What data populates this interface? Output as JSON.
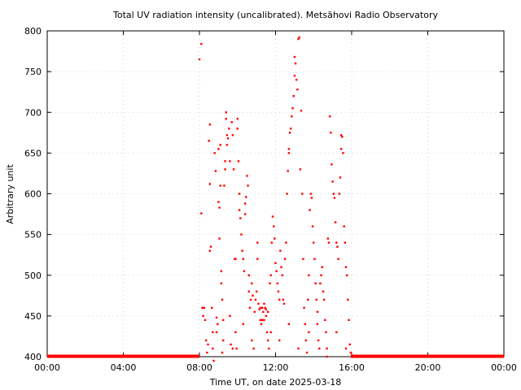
{
  "chart_data": {
    "type": "scatter",
    "title": "Total UV radiation intensity (uncalibrated). Metsähovi Radio Observatory",
    "xlabel": "Time UT, on date 2025-03-18",
    "ylabel": "Arbitrary unit",
    "xlim": [
      0,
      24
    ],
    "ylim": [
      400,
      800
    ],
    "x_ticks": [
      0,
      4,
      8,
      12,
      16,
      20,
      24
    ],
    "x_tick_labels": [
      "00:00",
      "04:00",
      "08:00",
      "12:00",
      "16:00",
      "20:00",
      "00:00"
    ],
    "y_ticks": [
      400,
      450,
      500,
      550,
      600,
      650,
      700,
      750,
      800
    ],
    "y_tick_labels": [
      "400",
      "450",
      "500",
      "550",
      "600",
      "650",
      "700",
      "750",
      "800"
    ],
    "grid": true,
    "color": "#ff0000",
    "baseline": {
      "value": 400,
      "x_ranges": [
        [
          0,
          8.0
        ],
        [
          15.95,
          24
        ]
      ]
    },
    "series": [
      {
        "points": [
          [
            8.0,
            765
          ],
          [
            8.1,
            784
          ],
          [
            8.1,
            576
          ],
          [
            8.15,
            460
          ],
          [
            8.25,
            460
          ],
          [
            8.3,
            445
          ],
          [
            8.35,
            420
          ],
          [
            8.4,
            405
          ],
          [
            8.45,
            415
          ],
          [
            8.5,
            665
          ],
          [
            8.55,
            685
          ],
          [
            8.55,
            612
          ],
          [
            8.55,
            530
          ],
          [
            8.6,
            535
          ],
          [
            8.65,
            460
          ],
          [
            8.7,
            410
          ],
          [
            8.75,
            395
          ],
          [
            8.8,
            650
          ],
          [
            8.85,
            628
          ],
          [
            8.9,
            448
          ],
          [
            8.9,
            430
          ],
          [
            8.95,
            440
          ],
          [
            9.0,
            655
          ],
          [
            9.0,
            590
          ],
          [
            9.05,
            583
          ],
          [
            9.05,
            545
          ],
          [
            9.1,
            610
          ],
          [
            9.1,
            660
          ],
          [
            9.15,
            505
          ],
          [
            9.15,
            490
          ],
          [
            9.2,
            470
          ],
          [
            9.2,
            405
          ],
          [
            9.25,
            445
          ],
          [
            9.3,
            610
          ],
          [
            9.35,
            640
          ],
          [
            9.35,
            630
          ],
          [
            9.4,
            700
          ],
          [
            9.4,
            692
          ],
          [
            9.45,
            672
          ],
          [
            9.45,
            660
          ],
          [
            9.5,
            668
          ],
          [
            9.55,
            680
          ],
          [
            9.6,
            640
          ],
          [
            9.6,
            450
          ],
          [
            9.65,
            415
          ],
          [
            9.7,
            688
          ],
          [
            9.75,
            672
          ],
          [
            9.8,
            630
          ],
          [
            9.85,
            520
          ],
          [
            9.9,
            520
          ],
          [
            9.9,
            430
          ],
          [
            9.95,
            410
          ],
          [
            10.0,
            692
          ],
          [
            10.0,
            680
          ],
          [
            10.05,
            640
          ],
          [
            10.1,
            600
          ],
          [
            10.1,
            580
          ],
          [
            10.15,
            570
          ],
          [
            10.2,
            550
          ],
          [
            10.25,
            530
          ],
          [
            10.3,
            520
          ],
          [
            10.35,
            505
          ],
          [
            10.4,
            588
          ],
          [
            10.4,
            575
          ],
          [
            10.45,
            596
          ],
          [
            10.5,
            622
          ],
          [
            10.55,
            610
          ],
          [
            10.6,
            500
          ],
          [
            10.6,
            480
          ],
          [
            10.65,
            460
          ],
          [
            10.7,
            470
          ],
          [
            10.75,
            490
          ],
          [
            10.8,
            475
          ],
          [
            10.85,
            410
          ],
          [
            10.9,
            455
          ],
          [
            10.95,
            470
          ],
          [
            11.0,
            480
          ],
          [
            11.05,
            540
          ],
          [
            11.05,
            520
          ],
          [
            11.1,
            465
          ],
          [
            11.15,
            458
          ],
          [
            11.2,
            445
          ],
          [
            11.25,
            440
          ],
          [
            11.3,
            460
          ],
          [
            11.35,
            455
          ],
          [
            11.4,
            445
          ],
          [
            11.45,
            460
          ],
          [
            11.5,
            450
          ],
          [
            11.55,
            430
          ],
          [
            11.6,
            420
          ],
          [
            11.65,
            410
          ],
          [
            11.7,
            490
          ],
          [
            11.75,
            500
          ],
          [
            11.8,
            540
          ],
          [
            11.85,
            572
          ],
          [
            11.9,
            560
          ],
          [
            11.95,
            545
          ],
          [
            12.0,
            515
          ],
          [
            12.05,
            505
          ],
          [
            12.1,
            490
          ],
          [
            12.15,
            480
          ],
          [
            12.2,
            470
          ],
          [
            12.25,
            530
          ],
          [
            12.3,
            510
          ],
          [
            12.35,
            500
          ],
          [
            12.4,
            470
          ],
          [
            12.45,
            465
          ],
          [
            12.5,
            520
          ],
          [
            12.55,
            540
          ],
          [
            12.6,
            600
          ],
          [
            12.65,
            628
          ],
          [
            12.7,
            655
          ],
          [
            12.7,
            650
          ],
          [
            12.75,
            675
          ],
          [
            12.8,
            680
          ],
          [
            12.85,
            695
          ],
          [
            12.9,
            705
          ],
          [
            12.95,
            720
          ],
          [
            13.0,
            745
          ],
          [
            13.0,
            768
          ],
          [
            13.05,
            760
          ],
          [
            13.1,
            740
          ],
          [
            13.15,
            728
          ],
          [
            13.2,
            790
          ],
          [
            13.25,
            792
          ],
          [
            13.3,
            630
          ],
          [
            13.35,
            702
          ],
          [
            13.4,
            600
          ],
          [
            13.45,
            520
          ],
          [
            13.5,
            460
          ],
          [
            13.55,
            440
          ],
          [
            13.6,
            420
          ],
          [
            13.65,
            405
          ],
          [
            13.7,
            470
          ],
          [
            13.75,
            500
          ],
          [
            13.8,
            580
          ],
          [
            13.85,
            600
          ],
          [
            13.9,
            595
          ],
          [
            13.95,
            560
          ],
          [
            14.0,
            540
          ],
          [
            14.05,
            520
          ],
          [
            14.1,
            490
          ],
          [
            14.15,
            470
          ],
          [
            14.2,
            440
          ],
          [
            14.25,
            420
          ],
          [
            14.3,
            410
          ],
          [
            14.35,
            490
          ],
          [
            14.4,
            500
          ],
          [
            14.45,
            510
          ],
          [
            14.5,
            480
          ],
          [
            14.55,
            470
          ],
          [
            14.6,
            445
          ],
          [
            14.65,
            430
          ],
          [
            14.7,
            410
          ],
          [
            14.75,
            545
          ],
          [
            14.8,
            540
          ],
          [
            14.85,
            695
          ],
          [
            14.9,
            675
          ],
          [
            14.95,
            636
          ],
          [
            15.0,
            615
          ],
          [
            15.05,
            600
          ],
          [
            15.1,
            595
          ],
          [
            15.15,
            565
          ],
          [
            15.2,
            540
          ],
          [
            15.25,
            535
          ],
          [
            15.3,
            520
          ],
          [
            15.35,
            600
          ],
          [
            15.4,
            620
          ],
          [
            15.45,
            655
          ],
          [
            15.45,
            672
          ],
          [
            15.5,
            670
          ],
          [
            15.55,
            650
          ],
          [
            15.6,
            560
          ],
          [
            15.65,
            540
          ],
          [
            15.7,
            510
          ],
          [
            15.75,
            500
          ],
          [
            15.8,
            470
          ],
          [
            15.85,
            445
          ],
          [
            15.9,
            415
          ],
          [
            15.95,
            405
          ],
          [
            8.2,
            450
          ],
          [
            8.7,
            430
          ],
          [
            9.25,
            420
          ],
          [
            9.75,
            410
          ],
          [
            10.3,
            440
          ],
          [
            10.75,
            420
          ],
          [
            11.2,
            460
          ],
          [
            11.75,
            430
          ],
          [
            12.2,
            420
          ],
          [
            12.7,
            440
          ],
          [
            13.2,
            410
          ],
          [
            13.75,
            430
          ],
          [
            14.2,
            455
          ],
          [
            14.7,
            400
          ],
          [
            15.2,
            430
          ],
          [
            15.7,
            410
          ],
          [
            11.4,
            465
          ],
          [
            11.6,
            455
          ],
          [
            11.3,
            445
          ],
          [
            11.5,
            458
          ]
        ]
      }
    ]
  }
}
